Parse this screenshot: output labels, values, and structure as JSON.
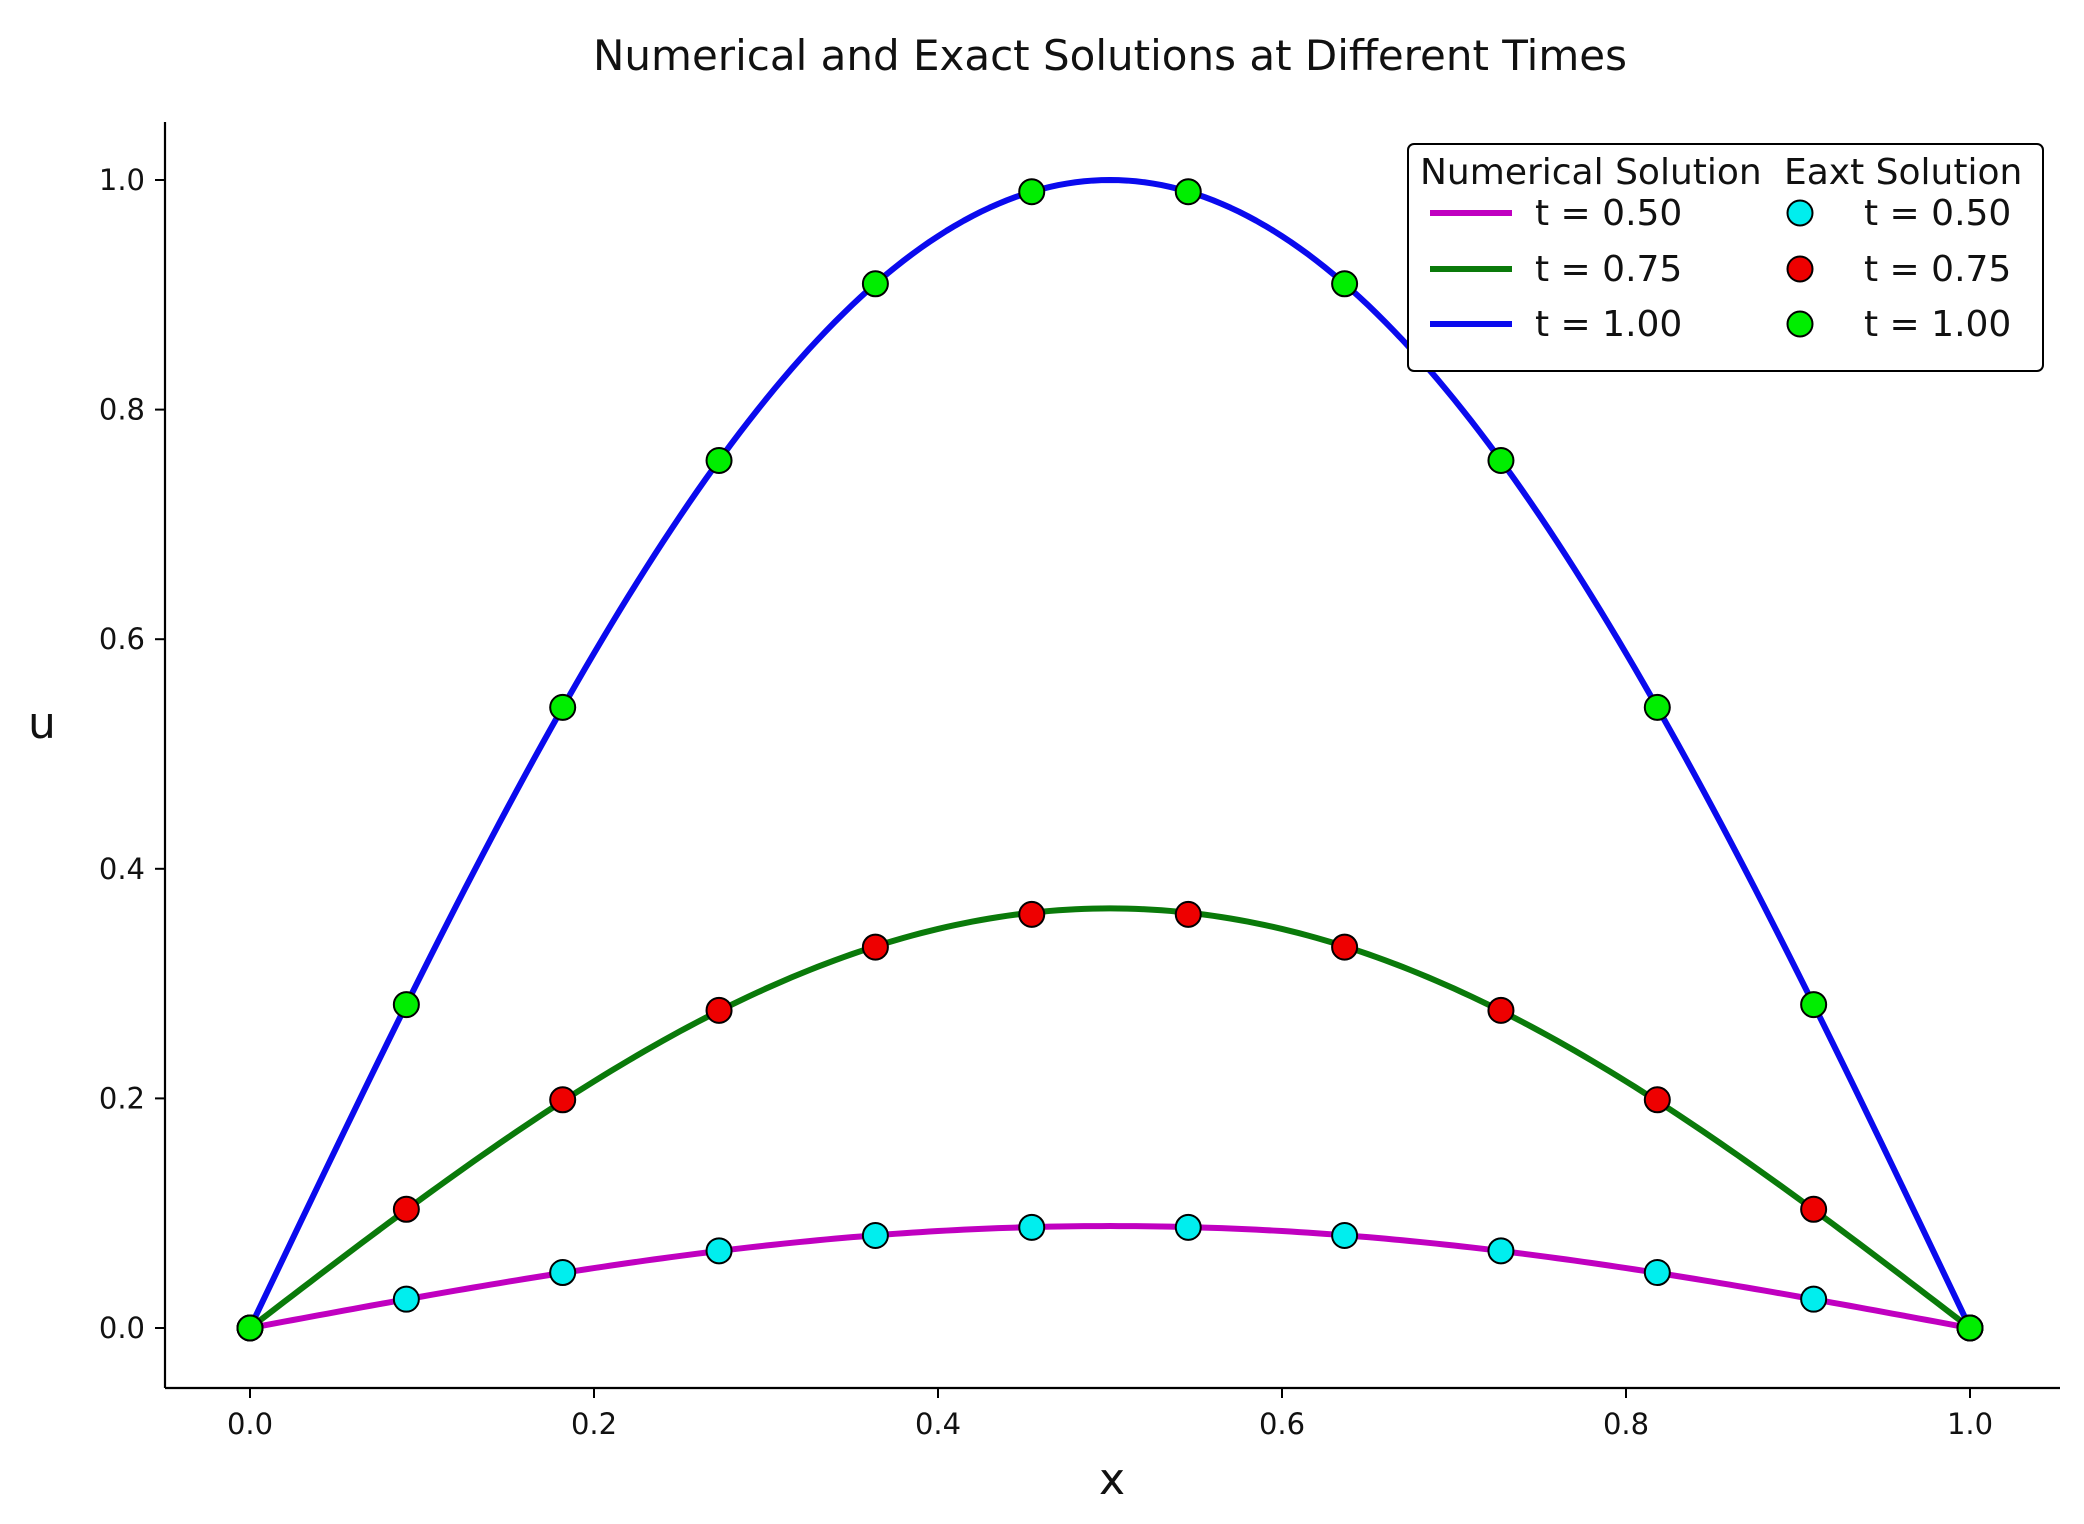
{
  "chart_data": {
    "type": "line",
    "title": "Numerical and Exact Solutions at Different Times",
    "xlabel": "x",
    "ylabel": "u",
    "xlim": [
      -0.05,
      1.05
    ],
    "ylim": [
      -0.05,
      1.05
    ],
    "x_ticks": [
      "0.0",
      "0.2",
      "0.4",
      "0.6",
      "0.8",
      "1.0"
    ],
    "y_ticks": [
      "0.0",
      "0.2",
      "0.4",
      "0.6",
      "0.8",
      "1.0"
    ],
    "grid": false,
    "legend": {
      "placement": "top-right",
      "columns": [
        {
          "header": "Numerical Solution",
          "kind": "line"
        },
        {
          "header": "Eaxt Solution",
          "kind": "marker"
        }
      ]
    },
    "series_numerical": [
      {
        "name": "t = 0.50",
        "color": "#c000c0",
        "peak": 0.0888
      },
      {
        "name": "t = 0.75",
        "color": "#0a7a0a",
        "peak": 0.3655
      },
      {
        "name": "t = 1.00",
        "color": "#0a0aee",
        "peak": 1.0
      }
    ],
    "series_exact": [
      {
        "name": "t = 0.50",
        "color": "#00eeee",
        "x": [
          0.0,
          0.0909,
          0.1818,
          0.2727,
          0.3636,
          0.4545,
          0.5455,
          0.6364,
          0.7273,
          0.8182,
          0.9091,
          1.0
        ],
        "y": [
          0.0,
          0.0251,
          0.0483,
          0.0672,
          0.0806,
          0.0877,
          0.0877,
          0.0806,
          0.0672,
          0.0483,
          0.0251,
          0.0
        ]
      },
      {
        "name": "t = 0.75",
        "color": "#ee0000",
        "x": [
          0.0,
          0.0909,
          0.1818,
          0.2727,
          0.3636,
          0.4545,
          0.5455,
          0.6364,
          0.7273,
          0.8182,
          0.9091,
          1.0
        ],
        "y": [
          0.0,
          0.1034,
          0.1988,
          0.2767,
          0.3318,
          0.3603,
          0.3603,
          0.3318,
          0.2767,
          0.1988,
          0.1034,
          0.0
        ]
      },
      {
        "name": "t = 1.00",
        "color": "#00ee00",
        "x": [
          0.0,
          0.0909,
          0.1818,
          0.2727,
          0.3636,
          0.4545,
          0.5455,
          0.6364,
          0.7273,
          0.8182,
          0.9091,
          1.0
        ],
        "y": [
          0.0,
          0.2817,
          0.5406,
          0.7557,
          0.9096,
          0.9898,
          0.9898,
          0.9096,
          0.7557,
          0.5406,
          0.2817,
          0.0
        ]
      }
    ]
  }
}
